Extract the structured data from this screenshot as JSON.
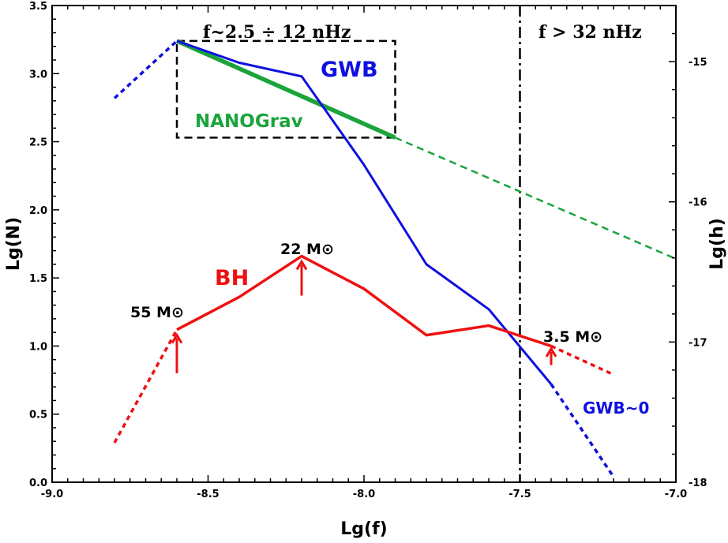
{
  "chart_data": {
    "type": "line",
    "xlabel": "Lg(f)",
    "ylabel": "Lg(N)",
    "y2label": "Lg(h)",
    "xlim": [
      -9.0,
      -7.0
    ],
    "ylim": [
      0.0,
      3.5
    ],
    "y2lim": [
      -18,
      -14.6
    ],
    "x_ticks": [
      "-9.0",
      "-8.5",
      "-8.0",
      "-7.5",
      "-7.0"
    ],
    "y_ticks": [
      "0.0",
      "0.5",
      "1.0",
      "1.5",
      "2.0",
      "2.5",
      "3.0",
      "3.5"
    ],
    "y2_ticks": [
      "-15",
      "-16",
      "-17",
      "-18"
    ],
    "grid": false,
    "series": [
      {
        "name": "GWB",
        "color": "#1010e0",
        "axis": "left",
        "x": [
          -8.6,
          -8.4,
          -8.2,
          -8.0,
          -7.8,
          -7.6,
          -7.4
        ],
        "y": [
          3.24,
          3.08,
          2.98,
          2.33,
          1.6,
          1.27,
          0.72
        ],
        "extrapolated": [
          {
            "x": [
              -8.8,
              -8.6
            ],
            "y": [
              2.82,
              3.24
            ]
          },
          {
            "x": [
              -7.4,
              -7.2
            ],
            "y": [
              0.72,
              0.04
            ]
          }
        ]
      },
      {
        "name": "NANOGrav",
        "color": "#1aa43c",
        "axis": "left",
        "x": [
          -8.6,
          -7.9
        ],
        "y": [
          3.24,
          2.53
        ],
        "extrapolated": [
          {
            "x": [
              -7.9,
              -7.0
            ],
            "y": [
              2.53,
              1.64
            ]
          }
        ]
      },
      {
        "name": "BH",
        "color": "#ee1111",
        "axis": "left",
        "x": [
          -8.6,
          -8.4,
          -8.2,
          -8.0,
          -7.8,
          -7.6,
          -7.4
        ],
        "y": [
          1.12,
          1.36,
          1.66,
          1.42,
          1.08,
          1.15,
          1.0
        ],
        "extrapolated": [
          {
            "x": [
              -8.8,
              -8.6
            ],
            "y": [
              0.29,
              1.12
            ]
          },
          {
            "x": [
              -7.4,
              -7.2
            ],
            "y": [
              1.0,
              0.79
            ]
          }
        ]
      }
    ],
    "box": {
      "x": [
        -8.6,
        -7.9
      ],
      "y": [
        2.53,
        3.24
      ],
      "label": "f~2.5 ÷ 12 nHz"
    },
    "vline": {
      "x": -7.5,
      "label": "f > 32 nHz"
    },
    "arrows": [
      {
        "x": -8.6,
        "y_from": 0.8,
        "y_to": 1.08
      },
      {
        "x": -8.2,
        "y_from": 1.37,
        "y_to": 1.62
      },
      {
        "x": -7.4,
        "y_from": 0.86,
        "y_to": 0.98
      }
    ],
    "annotations": {
      "gwb": "GWB",
      "nanograv": "NANOGrav",
      "bh": "BH",
      "gwb_zero": "GWB~0",
      "mass_55": "55 M⊙",
      "mass_22": "22 M⊙",
      "mass_3_5": "3.5 M⊙"
    }
  }
}
